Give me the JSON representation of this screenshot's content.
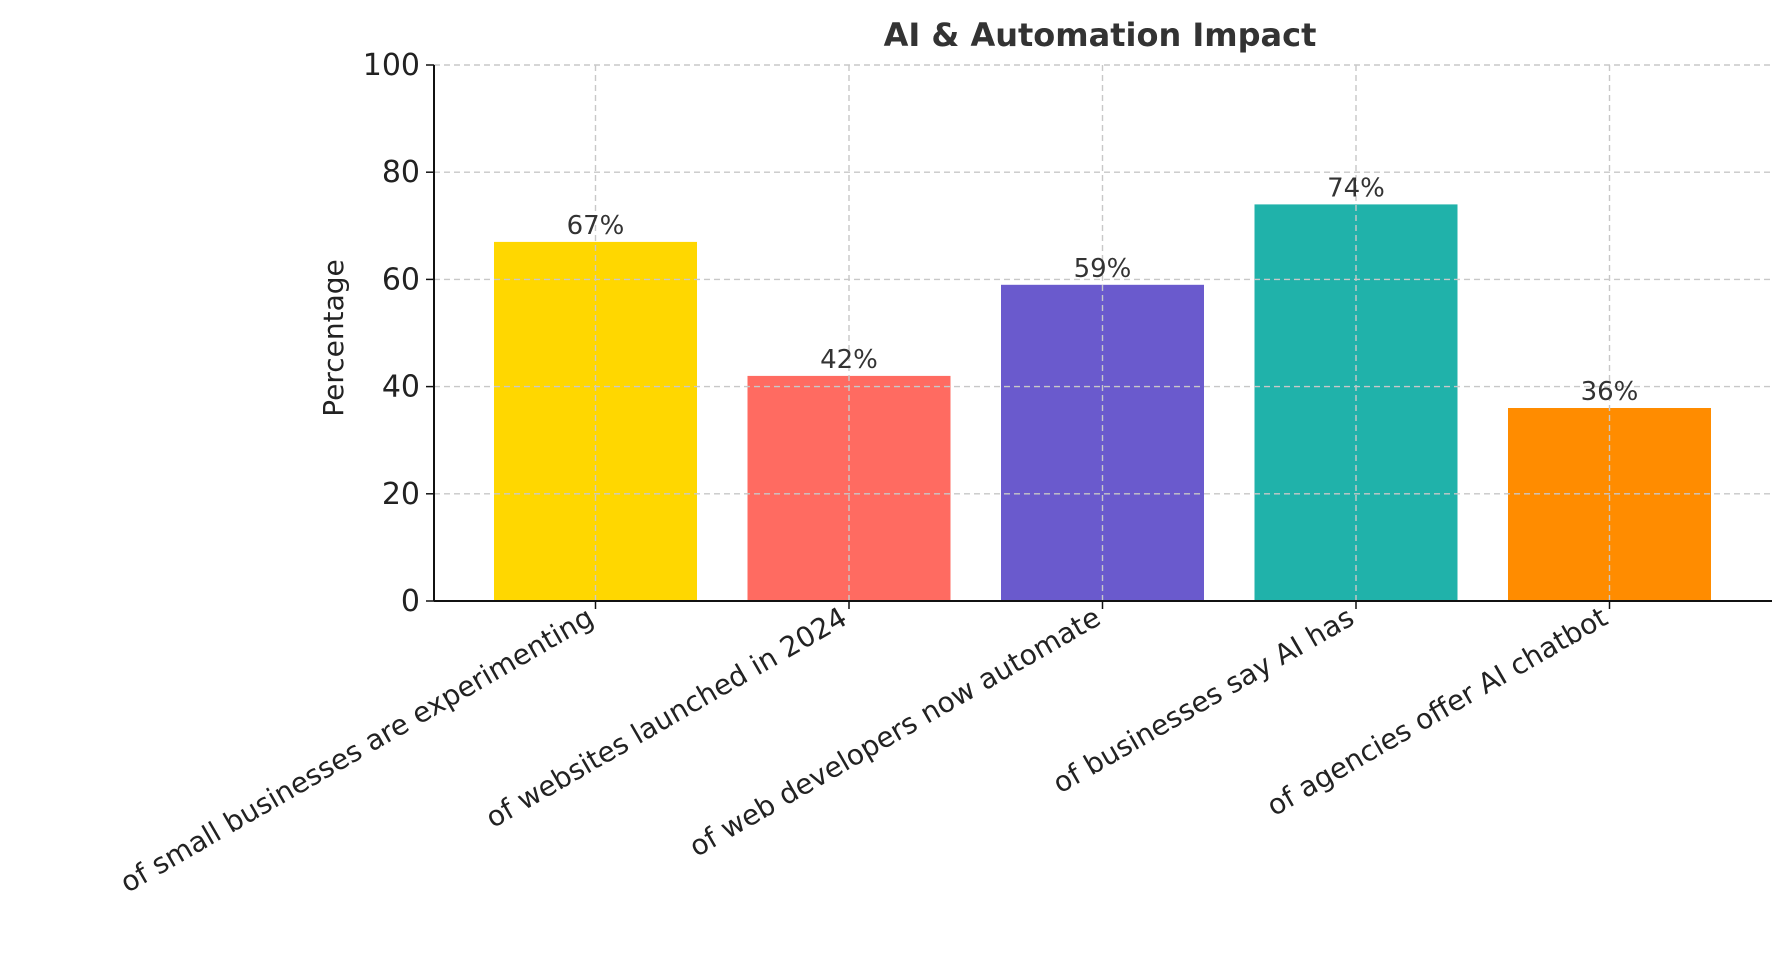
{
  "chart_data": {
    "type": "bar",
    "title": "AI & Automation Impact",
    "xlabel": "",
    "ylabel": "Percentage",
    "ylim": [
      0,
      100
    ],
    "yticks": [
      0,
      20,
      40,
      60,
      80,
      100
    ],
    "grid": true,
    "categories": [
      "of small businesses are experimenting",
      "of websites launched in 2024",
      "of web developers now automate",
      "of businesses say AI has",
      "of agencies offer AI chatbot"
    ],
    "values": [
      67,
      42,
      59,
      74,
      36
    ],
    "value_labels": [
      "67%",
      "42%",
      "59%",
      "74%",
      "36%"
    ],
    "colors": [
      "#FFD700",
      "#FF6B61",
      "#6A5ACD",
      "#20B2AA",
      "#FF8C00"
    ]
  }
}
